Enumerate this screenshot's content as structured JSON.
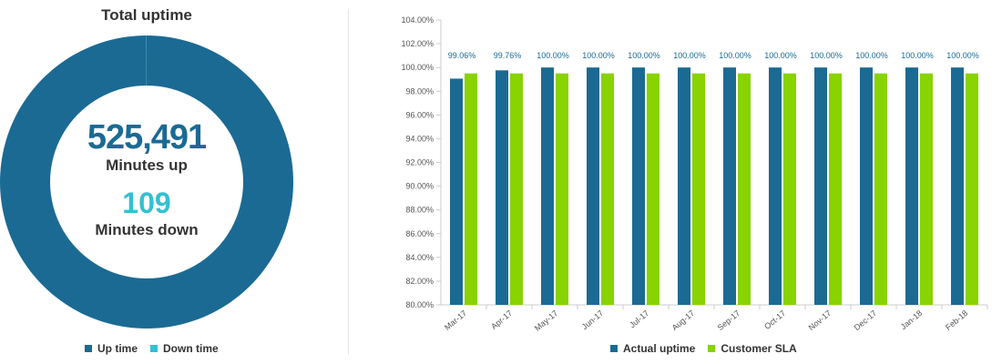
{
  "donut": {
    "title": "Total uptime",
    "minutes_up_value": "525,491",
    "minutes_up_label": "Minutes up",
    "minutes_down_value": "109",
    "minutes_down_label": "Minutes down",
    "legend": [
      "Up time",
      "Down time"
    ]
  },
  "colors": {
    "up": "#1b6a94",
    "down": "#33c0d3",
    "actual": "#1b6a94",
    "sla": "#88d300"
  },
  "chart_data": [
    {
      "type": "pie",
      "title": "Total uptime",
      "labels": [
        "Up time",
        "Down time"
      ],
      "values": [
        525491,
        109
      ]
    },
    {
      "type": "bar",
      "categories": [
        "Mar-17",
        "Apr-17",
        "May-17",
        "Jun-17",
        "Jul-17",
        "Aug-17",
        "Sep-17",
        "Oct-17",
        "Nov-17",
        "Dec-17",
        "Jan-18",
        "Feb-18"
      ],
      "series": [
        {
          "name": "Actual uptime",
          "values": [
            99.06,
            99.76,
            100.0,
            100.0,
            100.0,
            100.0,
            100.0,
            100.0,
            100.0,
            100.0,
            100.0,
            100.0
          ],
          "data_labels": [
            "99.06%",
            "99.76%",
            "100.00%",
            "100.00%",
            "100.00%",
            "100.00%",
            "100.00%",
            "100.00%",
            "100.00%",
            "100.00%",
            "100.00%",
            "100.00%"
          ]
        },
        {
          "name": "Customer SLA",
          "values": [
            99.5,
            99.5,
            99.5,
            99.5,
            99.5,
            99.5,
            99.5,
            99.5,
            99.5,
            99.5,
            99.5,
            99.5
          ]
        }
      ],
      "ylim": [
        80,
        104
      ],
      "yticks": [
        "80.00%",
        "82.00%",
        "84.00%",
        "86.00%",
        "88.00%",
        "90.00%",
        "92.00%",
        "94.00%",
        "96.00%",
        "98.00%",
        "100.00%",
        "102.00%",
        "104.00%"
      ],
      "grid": false,
      "legend_position": "bottom"
    }
  ]
}
